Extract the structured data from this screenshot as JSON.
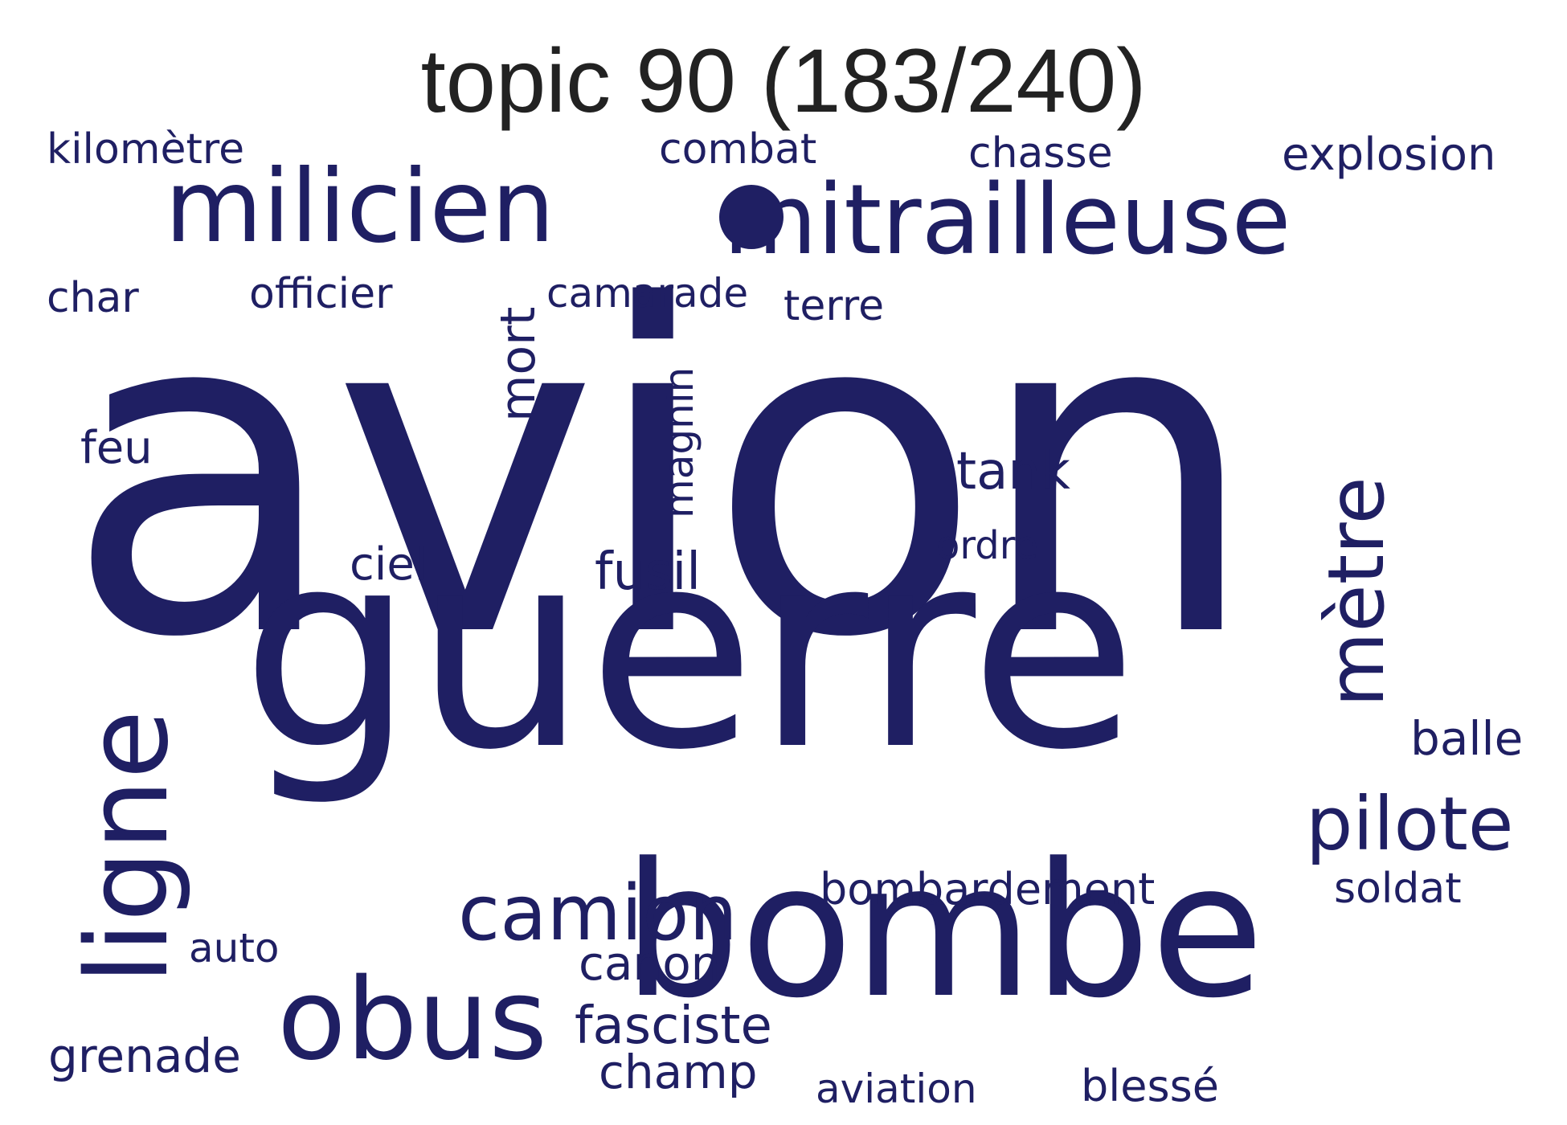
{
  "title": "topic 90 (183/240)",
  "color": "#1f1f63",
  "words": [
    {
      "id": "avion",
      "text": "avion"
    },
    {
      "id": "guerre",
      "text": "guerre"
    },
    {
      "id": "bombe",
      "text": "bombe"
    },
    {
      "id": "mitrailleuse",
      "text": "mitrailleuse"
    },
    {
      "id": "milicien",
      "text": "milicien"
    },
    {
      "id": "ligne",
      "text": "ligne"
    },
    {
      "id": "obus",
      "text": "obus"
    },
    {
      "id": "metre",
      "text": "mètre"
    },
    {
      "id": "camion",
      "text": "camion"
    },
    {
      "id": "pilote",
      "text": "pilote"
    },
    {
      "id": "kilometre",
      "text": "kilomètre"
    },
    {
      "id": "combat",
      "text": "combat"
    },
    {
      "id": "chasse",
      "text": "chasse"
    },
    {
      "id": "explosion",
      "text": "explosion"
    },
    {
      "id": "char",
      "text": "char"
    },
    {
      "id": "officier",
      "text": "officier"
    },
    {
      "id": "camarade",
      "text": "camarade"
    },
    {
      "id": "terre",
      "text": "terre"
    },
    {
      "id": "mort",
      "text": "mort"
    },
    {
      "id": "magnin",
      "text": "magnin"
    },
    {
      "id": "feu",
      "text": "feu"
    },
    {
      "id": "tank",
      "text": "tank"
    },
    {
      "id": "ordre",
      "text": "ordre"
    },
    {
      "id": "ciel",
      "text": "ciel"
    },
    {
      "id": "fusil",
      "text": "fusil"
    },
    {
      "id": "balle",
      "text": "balle"
    },
    {
      "id": "bombardement",
      "text": "bombardement"
    },
    {
      "id": "soldat",
      "text": "soldat"
    },
    {
      "id": "auto",
      "text": "auto"
    },
    {
      "id": "canon",
      "text": "canon"
    },
    {
      "id": "grenade",
      "text": "grenade"
    },
    {
      "id": "fasciste",
      "text": "fasciste"
    },
    {
      "id": "champ",
      "text": "champ"
    },
    {
      "id": "aviation",
      "text": "aviation"
    },
    {
      "id": "blesse",
      "text": "blessé"
    }
  ]
}
